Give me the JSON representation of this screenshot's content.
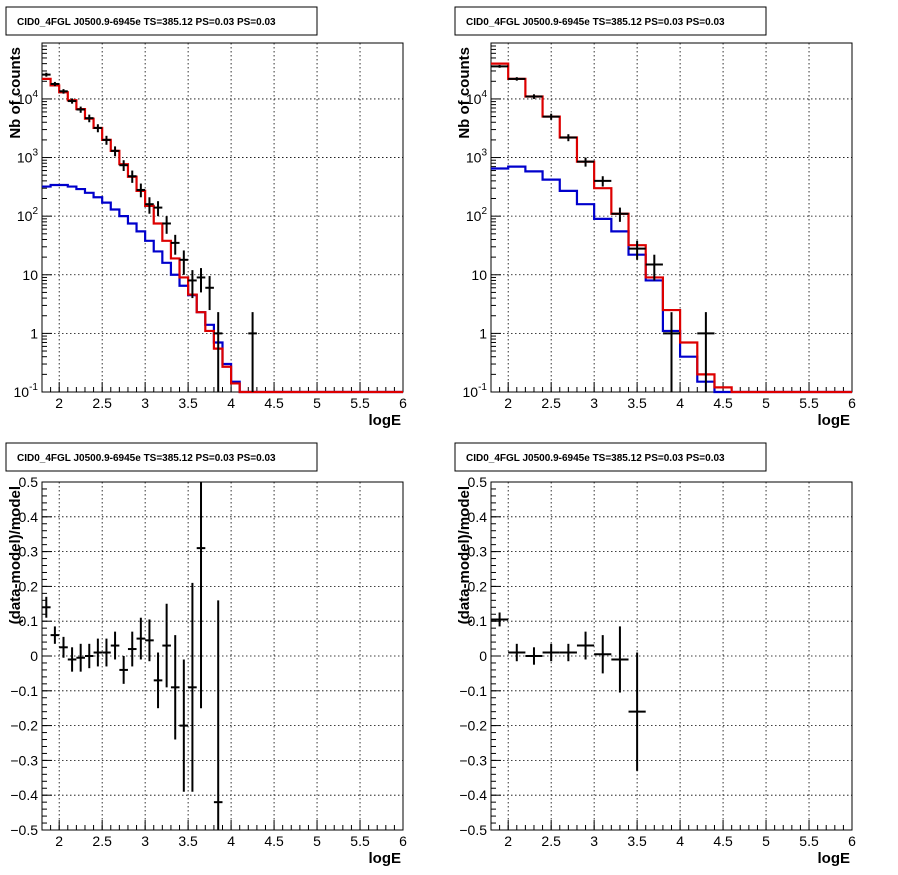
{
  "panel_title": "CID0_4FGL J0500.9-6945e TS=385.12 PS=0.03 PS=0.03",
  "colors": {
    "data": "#000000",
    "model": "#dd0000",
    "component": "#0000cc",
    "grid": "#000000"
  },
  "chart_data": [
    {
      "type": "line",
      "panel": "top-left",
      "title": "CID0_4FGL J0500.9-6945e TS=385.12 PS=0.03 PS=0.03",
      "xlabel": "logE",
      "ylabel": "Nb of counts",
      "yscale": "log",
      "xlim": [
        1.8,
        6.0
      ],
      "ylim": [
        0.1,
        90000
      ],
      "xticks": [
        "2",
        "2.5",
        "3",
        "3.5",
        "4",
        "4.5",
        "5",
        "5.5",
        "6"
      ],
      "yticks": [
        "10^-1",
        "1",
        "10",
        "10^2",
        "10^3",
        "10^4"
      ],
      "grid": true,
      "bin_edges": [
        1.8,
        1.9,
        2.0,
        2.1,
        2.2,
        2.3,
        2.4,
        2.5,
        2.6,
        2.7,
        2.8,
        2.9,
        3.0,
        3.1,
        3.2,
        3.3,
        3.4,
        3.5,
        3.6,
        3.7,
        3.8,
        3.9,
        4.0,
        4.1,
        4.2,
        4.3,
        4.4,
        4.5,
        4.6,
        4.7,
        4.8,
        4.9,
        5.0,
        5.1,
        5.2,
        5.3,
        5.4,
        5.5,
        5.6,
        5.7,
        5.8,
        5.9,
        6.0
      ],
      "series": [
        {
          "values": [
            22000,
            17000,
            13000,
            9500,
            6700,
            4600,
            3200,
            2000,
            1300,
            770,
            470,
            270,
            150,
            75,
            38,
            19,
            9,
            4.6,
            2.3,
            1.1,
            0.55,
            0.27,
            0.14,
            0.1,
            0.1,
            0.1,
            0.1,
            0.1,
            0.1,
            0.1,
            0.1,
            0.1,
            0.1,
            0.1,
            0.1,
            0.1,
            0.1,
            0.1,
            0.1,
            0.1,
            0.1,
            0.1
          ]
        },
        {
          "values": [
            320,
            340,
            340,
            320,
            290,
            250,
            210,
            170,
            130,
            100,
            75,
            55,
            38,
            25,
            16,
            10,
            6.5,
            4.5,
            2.3,
            1.4,
            0.7,
            0.3,
            0.15,
            0.1,
            0.1,
            0.1,
            0.1,
            0.1,
            0.1,
            0.1,
            0.1,
            0.1,
            0.1,
            0.1,
            0.1,
            0.1,
            0.1,
            0.1,
            0.1,
            0.1,
            0.1,
            0.1
          ]
        }
      ],
      "points": [
        {
          "x": 1.85,
          "y": 26000,
          "ylo": 24000,
          "yhi": 28000
        },
        {
          "x": 1.95,
          "y": 18000,
          "ylo": 16500,
          "yhi": 19500
        },
        {
          "x": 2.05,
          "y": 13500,
          "ylo": 12300,
          "yhi": 14700
        },
        {
          "x": 2.15,
          "y": 9200,
          "ylo": 8300,
          "yhi": 10200
        },
        {
          "x": 2.25,
          "y": 6600,
          "ylo": 5800,
          "yhi": 7400
        },
        {
          "x": 2.35,
          "y": 4700,
          "ylo": 4000,
          "yhi": 5400
        },
        {
          "x": 2.45,
          "y": 3200,
          "ylo": 2700,
          "yhi": 3700
        },
        {
          "x": 2.55,
          "y": 2000,
          "ylo": 1650,
          "yhi": 2350
        },
        {
          "x": 2.65,
          "y": 1300,
          "ylo": 1050,
          "yhi": 1550
        },
        {
          "x": 2.75,
          "y": 740,
          "ylo": 590,
          "yhi": 900
        },
        {
          "x": 2.85,
          "y": 480,
          "ylo": 370,
          "yhi": 600
        },
        {
          "x": 2.95,
          "y": 280,
          "ylo": 210,
          "yhi": 360
        },
        {
          "x": 3.05,
          "y": 160,
          "ylo": 110,
          "yhi": 210
        },
        {
          "x": 3.15,
          "y": 140,
          "ylo": 100,
          "yhi": 180
        },
        {
          "x": 3.25,
          "y": 75,
          "ylo": 50,
          "yhi": 100
        },
        {
          "x": 3.35,
          "y": 35,
          "ylo": 22,
          "yhi": 48
        },
        {
          "x": 3.45,
          "y": 18,
          "ylo": 10,
          "yhi": 26
        },
        {
          "x": 3.55,
          "y": 8,
          "ylo": 4,
          "yhi": 12
        },
        {
          "x": 3.65,
          "y": 9,
          "ylo": 5,
          "yhi": 13
        },
        {
          "x": 3.75,
          "y": 6,
          "ylo": 2.5,
          "yhi": 9.5
        },
        {
          "x": 3.85,
          "y": 1,
          "ylo": 0.1,
          "yhi": 2.3
        },
        {
          "x": 4.25,
          "y": 1,
          "ylo": 0.1,
          "yhi": 2.3
        }
      ]
    },
    {
      "type": "line",
      "panel": "top-right",
      "title": "CID0_4FGL J0500.9-6945e TS=385.12 PS=0.03 PS=0.03",
      "xlabel": "logE",
      "ylabel": "Nb of counts",
      "yscale": "log",
      "xlim": [
        1.8,
        6.0
      ],
      "ylim": [
        0.1,
        90000
      ],
      "xticks": [
        "2",
        "2.5",
        "3",
        "3.5",
        "4",
        "4.5",
        "5",
        "5.5",
        "6"
      ],
      "yticks": [
        "10^-1",
        "1",
        "10",
        "10^2",
        "10^3",
        "10^4"
      ],
      "grid": true,
      "bin_edges": [
        1.8,
        2.0,
        2.2,
        2.4,
        2.6,
        2.8,
        3.0,
        3.2,
        3.4,
        3.6,
        3.8,
        4.0,
        4.2,
        4.4,
        4.6,
        4.8,
        5.0,
        5.2,
        5.4,
        5.6,
        5.8,
        6.0
      ],
      "series": [
        {
          "values": [
            40000,
            22000,
            11000,
            5000,
            2200,
            850,
            300,
            110,
            32,
            9,
            2.5,
            0.7,
            0.2,
            0.12,
            0.1,
            0.1,
            0.1,
            0.1,
            0.1,
            0.1,
            0.1
          ]
        },
        {
          "values": [
            650,
            700,
            580,
            420,
            270,
            160,
            90,
            55,
            22,
            8,
            1.1,
            0.4,
            0.15,
            0.1,
            0.1,
            0.1,
            0.1,
            0.1,
            0.1,
            0.1,
            0.1
          ]
        }
      ],
      "points": [
        {
          "x": 1.9,
          "y": 36000,
          "ylo": 34000,
          "yhi": 38000
        },
        {
          "x": 2.1,
          "y": 22000,
          "ylo": 20500,
          "yhi": 23500
        },
        {
          "x": 2.3,
          "y": 11000,
          "ylo": 10000,
          "yhi": 12000
        },
        {
          "x": 2.5,
          "y": 5000,
          "ylo": 4400,
          "yhi": 5600
        },
        {
          "x": 2.7,
          "y": 2200,
          "ylo": 1900,
          "yhi": 2500
        },
        {
          "x": 2.9,
          "y": 850,
          "ylo": 700,
          "yhi": 1000
        },
        {
          "x": 3.1,
          "y": 400,
          "ylo": 320,
          "yhi": 480
        },
        {
          "x": 3.3,
          "y": 110,
          "ylo": 80,
          "yhi": 140
        },
        {
          "x": 3.5,
          "y": 28,
          "ylo": 18,
          "yhi": 38
        },
        {
          "x": 3.7,
          "y": 15,
          "ylo": 8,
          "yhi": 22
        },
        {
          "x": 3.9,
          "y": 1,
          "ylo": 0.1,
          "yhi": 2.3
        },
        {
          "x": 4.3,
          "y": 1,
          "ylo": 0.1,
          "yhi": 2.3
        }
      ]
    },
    {
      "type": "scatter",
      "panel": "bottom-left",
      "title": "CID0_4FGL J0500.9-6945e TS=385.12 PS=0.03 PS=0.03",
      "xlabel": "logE",
      "ylabel": "(data-model)/model",
      "xlim": [
        1.8,
        6.0
      ],
      "ylim": [
        -0.5,
        0.5
      ],
      "xticks": [
        "2",
        "2.5",
        "3",
        "3.5",
        "4",
        "4.5",
        "5",
        "5.5",
        "6"
      ],
      "yticks": [
        "−0.5",
        "−0.4",
        "−0.3",
        "−0.2",
        "−0.1",
        "0",
        "0.1",
        "0.2",
        "0.3",
        "0.4",
        "0.5"
      ],
      "grid": true,
      "xerr": 0.05,
      "points": [
        {
          "x": 1.85,
          "y": 0.14,
          "err": 0.03
        },
        {
          "x": 1.95,
          "y": 0.06,
          "err": 0.025
        },
        {
          "x": 2.05,
          "y": 0.025,
          "err": 0.03
        },
        {
          "x": 2.15,
          "y": -0.01,
          "err": 0.035
        },
        {
          "x": 2.25,
          "y": -0.005,
          "err": 0.04
        },
        {
          "x": 2.35,
          "y": 0.0,
          "err": 0.035
        },
        {
          "x": 2.45,
          "y": 0.01,
          "err": 0.04
        },
        {
          "x": 2.55,
          "y": 0.01,
          "err": 0.04
        },
        {
          "x": 2.65,
          "y": 0.03,
          "err": 0.04
        },
        {
          "x": 2.75,
          "y": -0.04,
          "err": 0.04
        },
        {
          "x": 2.85,
          "y": 0.02,
          "err": 0.05
        },
        {
          "x": 2.95,
          "y": 0.05,
          "err": 0.06
        },
        {
          "x": 3.05,
          "y": 0.045,
          "err": 0.06
        },
        {
          "x": 3.15,
          "y": -0.07,
          "err": 0.08
        },
        {
          "x": 3.25,
          "y": 0.03,
          "err": 0.12
        },
        {
          "x": 3.35,
          "y": -0.09,
          "err": 0.15
        },
        {
          "x": 3.45,
          "y": -0.2,
          "err": 0.19
        },
        {
          "x": 3.55,
          "y": -0.09,
          "err": 0.3
        },
        {
          "x": 3.65,
          "y": 0.31,
          "err": 0.46
        },
        {
          "x": 3.85,
          "y": -0.42,
          "err": 0.58
        }
      ]
    },
    {
      "type": "scatter",
      "panel": "bottom-right",
      "title": "CID0_4FGL J0500.9-6945e TS=385.12 PS=0.03 PS=0.03",
      "xlabel": "logE",
      "ylabel": "(data-model)/model",
      "xlim": [
        1.8,
        6.0
      ],
      "ylim": [
        -0.5,
        0.5
      ],
      "xticks": [
        "2",
        "2.5",
        "3",
        "3.5",
        "4",
        "4.5",
        "5",
        "5.5",
        "6"
      ],
      "yticks": [
        "−0.5",
        "−0.4",
        "−0.3",
        "−0.2",
        "−0.1",
        "0",
        "0.1",
        "0.2",
        "0.3",
        "0.4",
        "0.5"
      ],
      "grid": true,
      "xerr": 0.1,
      "points": [
        {
          "x": 1.9,
          "y": 0.105,
          "err": 0.02
        },
        {
          "x": 2.1,
          "y": 0.01,
          "err": 0.025
        },
        {
          "x": 2.3,
          "y": 0.0,
          "err": 0.025
        },
        {
          "x": 2.5,
          "y": 0.01,
          "err": 0.025
        },
        {
          "x": 2.7,
          "y": 0.01,
          "err": 0.025
        },
        {
          "x": 2.9,
          "y": 0.03,
          "err": 0.04
        },
        {
          "x": 3.1,
          "y": 0.005,
          "err": 0.055
        },
        {
          "x": 3.3,
          "y": -0.01,
          "err": 0.095
        },
        {
          "x": 3.5,
          "y": -0.16,
          "err": 0.17
        }
      ]
    }
  ]
}
